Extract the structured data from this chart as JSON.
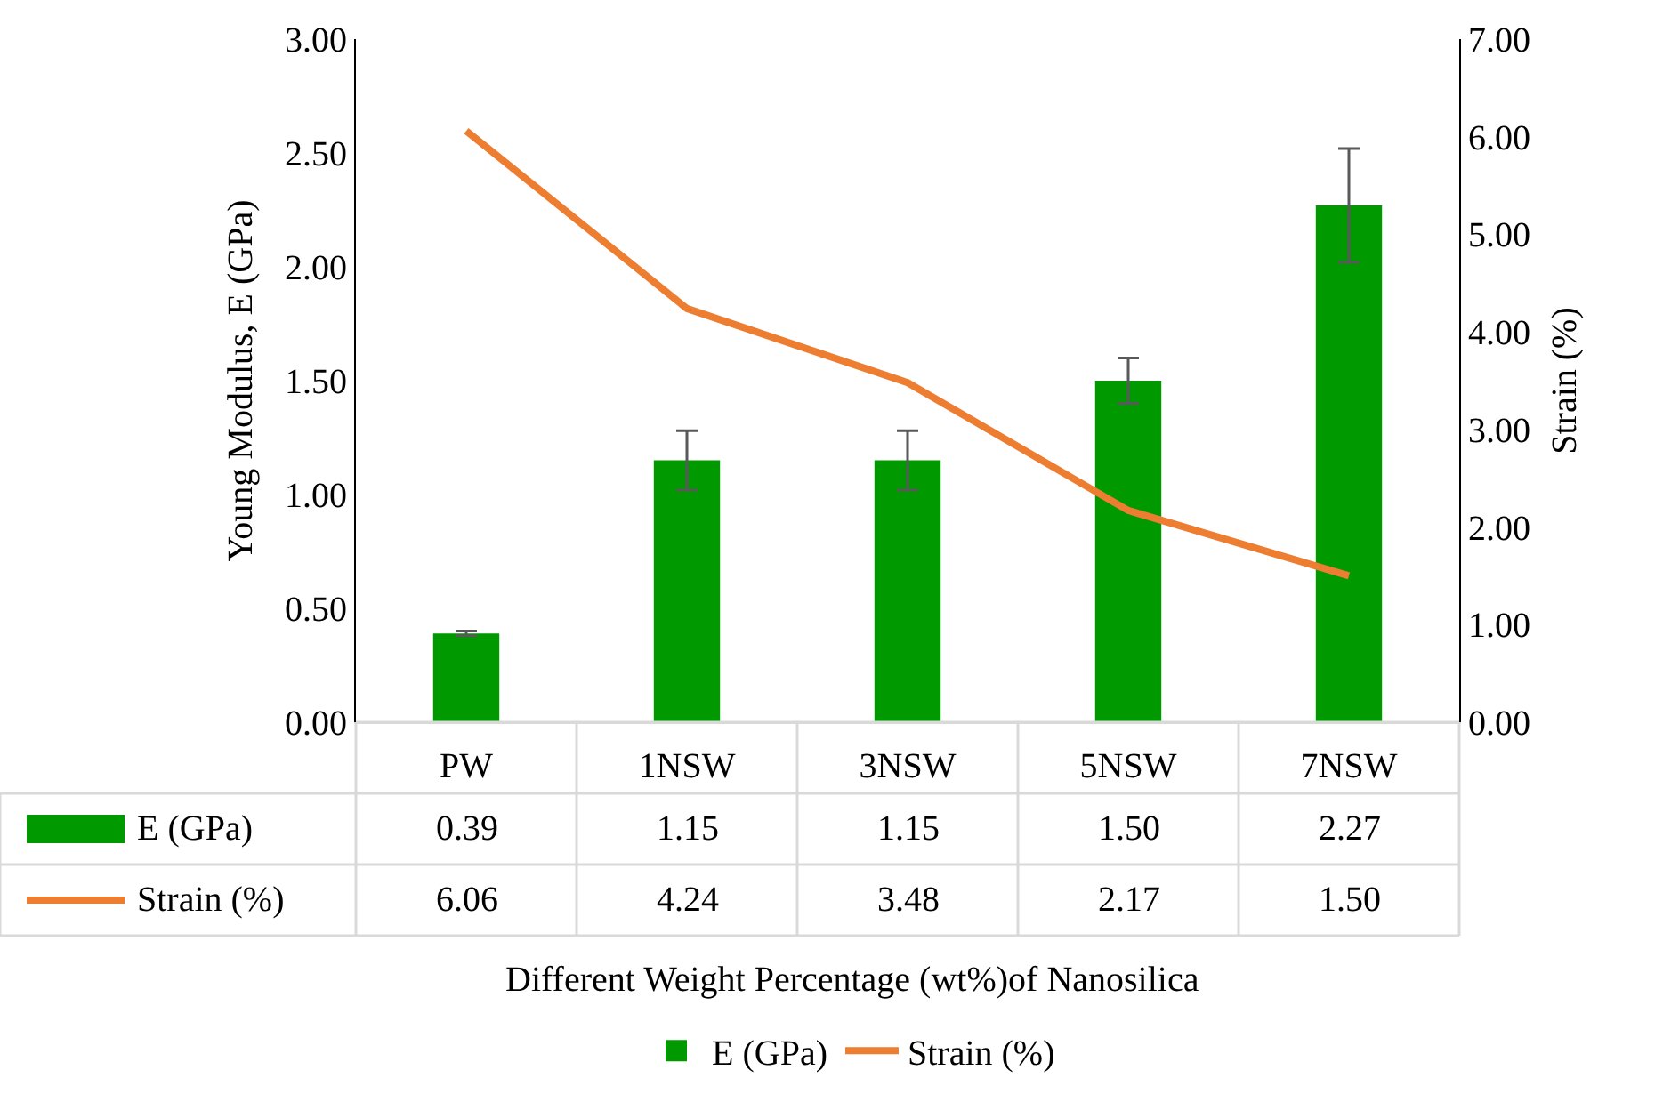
{
  "chart_data": {
    "type": "bar",
    "xlabel": "Different Weight Percentage (wt%)of Nanosilica",
    "ylabel": "Young Modulus, E (GPa)",
    "y2label": "Strain (%)",
    "categories": [
      "PW",
      "1NSW",
      "3NSW",
      "5NSW",
      "7NSW"
    ],
    "series": [
      {
        "name": "E (GPa)",
        "color": "#009900",
        "values": [
          0.39,
          1.15,
          1.15,
          1.5,
          2.27
        ],
        "errors": [
          0.01,
          0.13,
          0.13,
          0.1,
          0.25
        ],
        "value_labels": [
          "0.39",
          "1.15",
          "1.15",
          "1.50",
          "2.27"
        ]
      },
      {
        "name": "Strain (%)",
        "type": "line",
        "axis": "y2",
        "color": "#ed7d31",
        "values": [
          6.06,
          4.24,
          3.48,
          2.17,
          1.5
        ],
        "value_labels": [
          "6.06",
          "4.24",
          "3.48",
          "2.17",
          "1.50"
        ],
        "marker": "none",
        "line_style": "solid"
      }
    ],
    "ylim": [
      0,
      3
    ],
    "yticks": [
      {
        "value": 0,
        "label": "0.00"
      },
      {
        "value": 0.5,
        "label": "0.50"
      },
      {
        "value": 1,
        "label": "1.00"
      },
      {
        "value": 1.5,
        "label": "1.50"
      },
      {
        "value": 2,
        "label": "2.00"
      },
      {
        "value": 2.5,
        "label": "2.50"
      },
      {
        "value": 3,
        "label": "3.00"
      }
    ],
    "y2lim": [
      0,
      7
    ],
    "y2ticks": [
      {
        "value": 0,
        "label": "0.00"
      },
      {
        "value": 1,
        "label": "1.00"
      },
      {
        "value": 2,
        "label": "2.00"
      },
      {
        "value": 3,
        "label": "3.00"
      },
      {
        "value": 4,
        "label": "4.00"
      },
      {
        "value": 5,
        "label": "5.00"
      },
      {
        "value": 6,
        "label": "6.00"
      },
      {
        "value": 7,
        "label": "7.00"
      }
    ],
    "grid": false,
    "legend": "bottom"
  }
}
